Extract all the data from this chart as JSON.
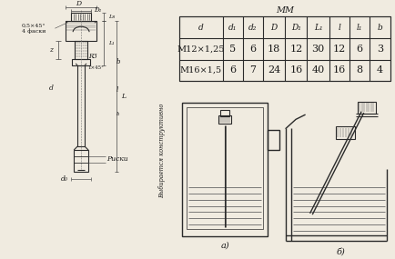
{
  "bg_color": "#f0ebe0",
  "line_color": "#2a2a2a",
  "text_color": "#1a1a1a",
  "table_headers": [
    "d",
    "d₁",
    "d₂",
    "D",
    "D₁",
    "L₁",
    "l",
    "l₁",
    "b"
  ],
  "table_rows": [
    [
      "M12×1,25",
      "5",
      "6",
      "18",
      "12",
      "30",
      "12",
      "6",
      "3"
    ],
    [
      "M16×1,5",
      "6",
      "7",
      "24",
      "16",
      "40",
      "16",
      "8",
      "4"
    ]
  ],
  "label_a": "а)",
  "label_b": "б)",
  "vertical_text": "Выбирается конструктивно",
  "label_riski": "Риски"
}
